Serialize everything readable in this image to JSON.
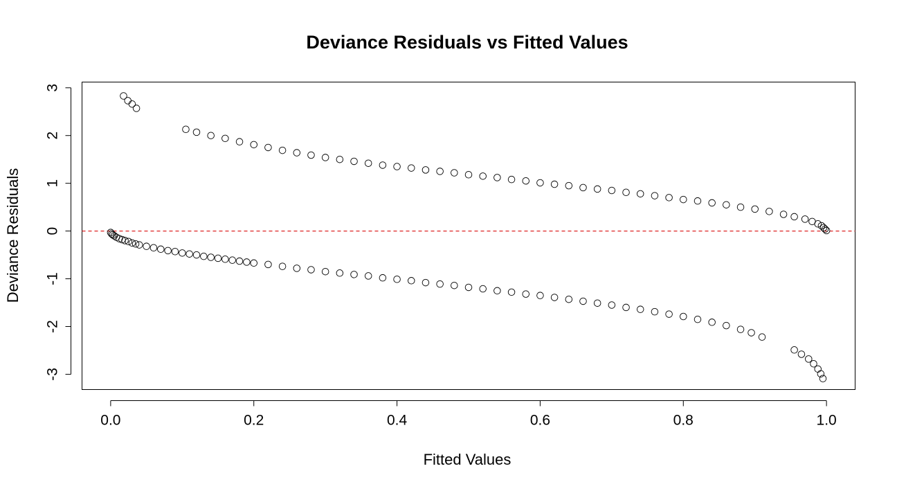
{
  "chart_data": {
    "type": "scatter",
    "title": "Deviance Residuals vs Fitted Values",
    "xlabel": "Fitted Values",
    "ylabel": "Deviance Residuals",
    "xlim": [
      -0.04,
      1.04
    ],
    "ylim": [
      -3.32,
      3.12
    ],
    "xticks": [
      0.0,
      0.2,
      0.4,
      0.6,
      0.8,
      1.0
    ],
    "xtick_labels": [
      "0.0",
      "0.2",
      "0.4",
      "0.6",
      "0.8",
      "1.0"
    ],
    "yticks": [
      -3,
      -2,
      -1,
      0,
      1,
      2,
      3
    ],
    "ytick_labels": [
      "-3",
      "-2",
      "-1",
      "0",
      "1",
      "2",
      "3"
    ],
    "marker": "open-circle",
    "reference_line": {
      "y": 0,
      "style": "dashed",
      "color": "#dd2222"
    },
    "point_color": "#000000",
    "grid": false,
    "series": [
      {
        "values_xy": [
          [
            0.0,
            -0.03
          ],
          [
            0.0015,
            -0.06
          ],
          [
            0.003,
            -0.08
          ],
          [
            0.005,
            -0.1
          ],
          [
            0.008,
            -0.13
          ],
          [
            0.012,
            -0.16
          ],
          [
            0.016,
            -0.18
          ],
          [
            0.02,
            -0.2
          ],
          [
            0.025,
            -0.22
          ],
          [
            0.03,
            -0.25
          ],
          [
            0.035,
            -0.27
          ],
          [
            0.04,
            -0.29
          ],
          [
            0.05,
            -0.32
          ],
          [
            0.06,
            -0.35
          ],
          [
            0.07,
            -0.38
          ],
          [
            0.08,
            -0.41
          ],
          [
            0.09,
            -0.43
          ],
          [
            0.1,
            -0.46
          ],
          [
            0.11,
            -0.48
          ],
          [
            0.12,
            -0.5
          ],
          [
            0.13,
            -0.53
          ],
          [
            0.14,
            -0.55
          ],
          [
            0.15,
            -0.57
          ],
          [
            0.16,
            -0.59
          ],
          [
            0.17,
            -0.61
          ],
          [
            0.18,
            -0.63
          ],
          [
            0.19,
            -0.65
          ],
          [
            0.2,
            -0.67
          ],
          [
            0.22,
            -0.7
          ],
          [
            0.24,
            -0.74
          ],
          [
            0.26,
            -0.78
          ],
          [
            0.28,
            -0.81
          ],
          [
            0.3,
            -0.85
          ],
          [
            0.32,
            -0.88
          ],
          [
            0.34,
            -0.91
          ],
          [
            0.36,
            -0.94
          ],
          [
            0.38,
            -0.98
          ],
          [
            0.4,
            -1.01
          ],
          [
            0.42,
            -1.04
          ],
          [
            0.44,
            -1.08
          ],
          [
            0.46,
            -1.11
          ],
          [
            0.48,
            -1.14
          ],
          [
            0.5,
            -1.18
          ],
          [
            0.52,
            -1.21
          ],
          [
            0.54,
            -1.25
          ],
          [
            0.56,
            -1.28
          ],
          [
            0.58,
            -1.32
          ],
          [
            0.6,
            -1.35
          ],
          [
            0.62,
            -1.39
          ],
          [
            0.64,
            -1.43
          ],
          [
            0.66,
            -1.47
          ],
          [
            0.68,
            -1.51
          ],
          [
            0.7,
            -1.55
          ],
          [
            0.72,
            -1.6
          ],
          [
            0.74,
            -1.64
          ],
          [
            0.76,
            -1.69
          ],
          [
            0.78,
            -1.74
          ],
          [
            0.8,
            -1.79
          ],
          [
            0.82,
            -1.85
          ],
          [
            0.84,
            -1.91
          ],
          [
            0.86,
            -1.98
          ],
          [
            0.88,
            -2.06
          ],
          [
            0.895,
            -2.13
          ],
          [
            0.91,
            -2.22
          ],
          [
            0.955,
            -2.49
          ],
          [
            0.965,
            -2.58
          ],
          [
            0.975,
            -2.68
          ],
          [
            0.982,
            -2.78
          ],
          [
            0.988,
            -2.89
          ],
          [
            0.992,
            -2.99
          ],
          [
            0.995,
            -3.09
          ],
          [
            0.018,
            2.83
          ],
          [
            0.024,
            2.73
          ],
          [
            0.03,
            2.66
          ],
          [
            0.036,
            2.57
          ],
          [
            0.105,
            2.13
          ],
          [
            0.12,
            2.07
          ],
          [
            0.14,
            2.0
          ],
          [
            0.16,
            1.94
          ],
          [
            0.18,
            1.87
          ],
          [
            0.2,
            1.81
          ],
          [
            0.22,
            1.75
          ],
          [
            0.24,
            1.69
          ],
          [
            0.26,
            1.64
          ],
          [
            0.28,
            1.59
          ],
          [
            0.3,
            1.54
          ],
          [
            0.32,
            1.5
          ],
          [
            0.34,
            1.46
          ],
          [
            0.36,
            1.42
          ],
          [
            0.38,
            1.38
          ],
          [
            0.4,
            1.35
          ],
          [
            0.42,
            1.32
          ],
          [
            0.44,
            1.28
          ],
          [
            0.46,
            1.25
          ],
          [
            0.48,
            1.22
          ],
          [
            0.5,
            1.18
          ],
          [
            0.52,
            1.15
          ],
          [
            0.54,
            1.12
          ],
          [
            0.56,
            1.08
          ],
          [
            0.58,
            1.05
          ],
          [
            0.6,
            1.01
          ],
          [
            0.62,
            0.98
          ],
          [
            0.64,
            0.95
          ],
          [
            0.66,
            0.91
          ],
          [
            0.68,
            0.88
          ],
          [
            0.7,
            0.85
          ],
          [
            0.72,
            0.81
          ],
          [
            0.74,
            0.78
          ],
          [
            0.76,
            0.74
          ],
          [
            0.78,
            0.7
          ],
          [
            0.8,
            0.66
          ],
          [
            0.82,
            0.63
          ],
          [
            0.84,
            0.59
          ],
          [
            0.86,
            0.55
          ],
          [
            0.88,
            0.5
          ],
          [
            0.9,
            0.46
          ],
          [
            0.92,
            0.41
          ],
          [
            0.94,
            0.35
          ],
          [
            0.955,
            0.3
          ],
          [
            0.97,
            0.25
          ],
          [
            0.98,
            0.2
          ],
          [
            0.988,
            0.15
          ],
          [
            0.993,
            0.11
          ],
          [
            0.996,
            0.07
          ],
          [
            0.998,
            0.04
          ],
          [
            1.0,
            0.01
          ]
        ]
      }
    ]
  }
}
